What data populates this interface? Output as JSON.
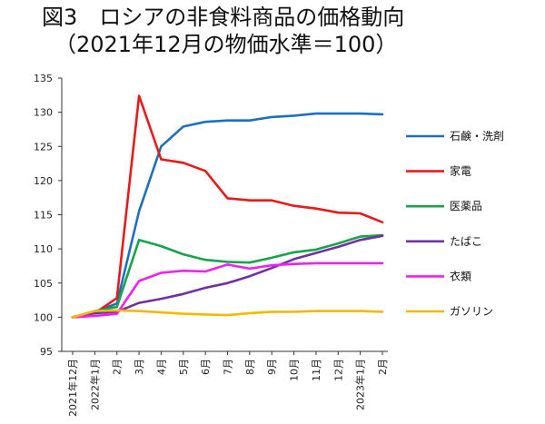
{
  "header": {
    "title": "図3　ロシアの非食料商品の価格動向",
    "subtitle": "（2021年12月の物価水準＝100）"
  },
  "chart_data": {
    "type": "line",
    "title": "図3　ロシアの非食料商品の価格動向",
    "subtitle": "（2021年12月の物価水準＝100）",
    "xlabel": "",
    "ylabel": "",
    "ylim": [
      95,
      135
    ],
    "yticks": [
      95,
      100,
      105,
      110,
      115,
      120,
      125,
      130,
      135
    ],
    "grid": false,
    "legend_position": "right",
    "categories": [
      "2021年12月",
      "2022年1月",
      "2月",
      "3月",
      "4月",
      "5月",
      "6月",
      "7月",
      "8月",
      "9月",
      "10月",
      "11月",
      "12月",
      "2023年1月",
      "2月"
    ],
    "series": [
      {
        "name": "石鹸・洗剤",
        "color": "#1f6fbf",
        "values": [
          100.0,
          100.8,
          102.0,
          115.5,
          125.0,
          127.9,
          128.6,
          128.8,
          128.8,
          129.3,
          129.5,
          129.8,
          129.8,
          129.8,
          129.7
        ]
      },
      {
        "name": "家電",
        "color": "#e8191a",
        "values": [
          100.0,
          100.6,
          102.8,
          132.4,
          123.1,
          122.6,
          121.4,
          117.4,
          117.1,
          117.1,
          116.3,
          115.9,
          115.3,
          115.2,
          113.9
        ]
      },
      {
        "name": "医薬品",
        "color": "#16a34a",
        "values": [
          100.0,
          100.9,
          101.5,
          111.3,
          110.4,
          109.2,
          108.4,
          108.1,
          108.0,
          108.7,
          109.5,
          109.9,
          110.8,
          111.8,
          112.0
        ]
      },
      {
        "name": "たばこ",
        "color": "#7030a0",
        "values": [
          100.0,
          100.6,
          100.8,
          102.1,
          102.7,
          103.4,
          104.3,
          105.0,
          106.0,
          107.2,
          108.5,
          109.4,
          110.3,
          111.3,
          111.9
        ]
      },
      {
        "name": "衣類",
        "color": "#ee22ee",
        "values": [
          100.0,
          100.2,
          100.5,
          105.3,
          106.5,
          106.8,
          106.7,
          107.7,
          107.1,
          107.6,
          107.8,
          107.9,
          107.9,
          107.9,
          107.9
        ]
      },
      {
        "name": "ガソリン",
        "color": "#f5b800",
        "values": [
          100.0,
          100.9,
          101.0,
          100.9,
          100.7,
          100.5,
          100.4,
          100.3,
          100.6,
          100.8,
          100.8,
          100.9,
          100.9,
          100.9,
          100.8
        ]
      }
    ]
  }
}
